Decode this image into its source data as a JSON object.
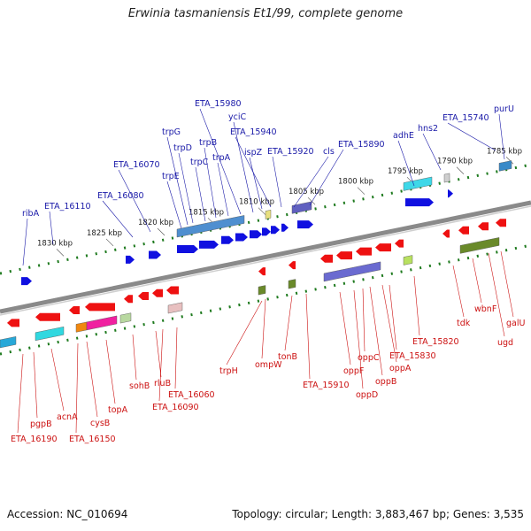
{
  "title": "Erwinia tasmaniensis Et1/99, complete genome",
  "footer": {
    "accession": "Accession: NC_010694",
    "summary": "Topology: circular; Length: 3,883,467 bp; Genes: 3,535"
  },
  "colors": {
    "backbone": "#8a8a8a",
    "tick": "#1e7a1e",
    "forward_label": "#1a1aa8",
    "reverse_label": "#cc1111",
    "forward_cds": "#1010e0",
    "reverse_cds": "#ee1111"
  },
  "scale_labels": [
    "1830 kbp",
    "1825 kbp",
    "1820 kbp",
    "1815 kbp",
    "1810 kbp",
    "1805 kbp",
    "1800 kbp",
    "1795 kbp",
    "1790 kbp",
    "1785 kbp"
  ],
  "top_labels": [
    "ribA",
    "ETA_16110",
    "ETA_16080",
    "ETA_16070",
    "trpE",
    "trpG",
    "trpD",
    "trpC",
    "trpB",
    "trpA",
    "ETA_15980",
    "yciC",
    "ispZ",
    "ETA_15940",
    "ETA_15920",
    "cls",
    "ETA_15890",
    "adhE",
    "hns2",
    "ETA_15740",
    "purU"
  ],
  "bottom_labels": [
    "ETA_16190",
    "pgpB",
    "acnA",
    "ETA_16150",
    "cysB",
    "topA",
    "sohB",
    "rluB",
    "ETA_16090",
    "ETA_16060",
    "trpH",
    "ompW",
    "tonB",
    "ETA_15910",
    "oppF",
    "oppD",
    "oppC",
    "oppB",
    "oppA",
    "ETA_15830",
    "ETA_15820",
    "tdk",
    "wbnF",
    "ugd",
    "galU"
  ]
}
